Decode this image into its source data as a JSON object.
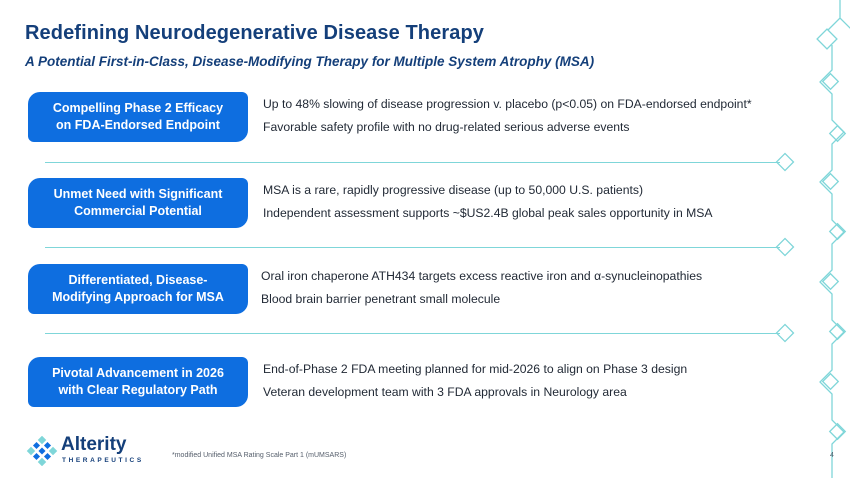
{
  "header": {
    "title": "Redefining Neurodegenerative Disease Therapy",
    "subtitle": "A Potential First-in-Class, Disease-Modifying Therapy for Multiple System Atrophy (MSA)"
  },
  "rows": [
    {
      "label": "Compelling Phase 2 Efficacy\non FDA-Endorsed Endpoint",
      "lines": [
        "Up to 48% slowing of disease progression v. placebo (p<0.05) on FDA-endorsed endpoint*",
        "Favorable safety profile with no drug-related serious adverse events"
      ]
    },
    {
      "label": "Unmet Need with Significant\nCommercial Potential",
      "lines": [
        "MSA is a rare, rapidly progressive disease (up to 50,000 U.S. patients)",
        "Independent assessment supports ~$US2.4B global peak sales opportunity in MSA"
      ]
    },
    {
      "label": "Differentiated, Disease-\nModifying Approach for MSA",
      "lines": [
        "Oral iron chaperone ATH434 targets excess reactive iron and α-synucleinopathies",
        "Blood brain barrier penetrant small molecule"
      ]
    },
    {
      "label": "Pivotal Advancement in 2026\nwith Clear Regulatory Path",
      "lines": [
        "End-of-Phase 2 FDA meeting planned for mid-2026 to align on Phase 3 design",
        "Veteran development team with 3 FDA approvals in Neurology area"
      ]
    }
  ],
  "footer": {
    "logo_name": "Alterity",
    "logo_sub": "THERAPEUTICS",
    "footnote": "*modified Unified MSA Rating Scale Part 1 (mUMSARS)",
    "page_number": "4"
  },
  "colors": {
    "accent": "#0e6ee0",
    "title": "#143f7a",
    "teal": "#7fd6d9"
  }
}
